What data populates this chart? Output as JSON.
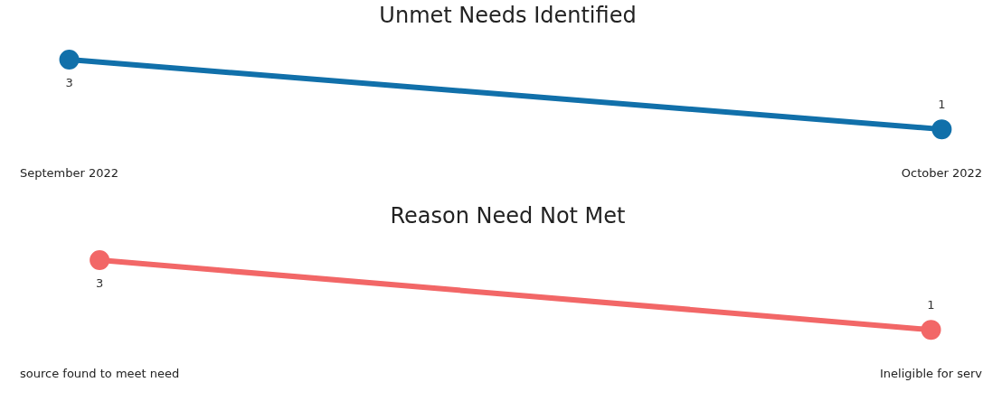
{
  "chart_data": [
    {
      "type": "line",
      "title": "Unmet Needs Identified",
      "categories": [
        "September 2022",
        "October 2022"
      ],
      "series": [
        {
          "color": "#1170aa",
          "values": [
            3,
            1
          ]
        }
      ],
      "data_labels": true,
      "marker": "circle",
      "grid": false,
      "legend": false,
      "tick_labels": "x"
    },
    {
      "type": "line",
      "title": "Reason Need Not Met",
      "categories": [
        "source found to meet need",
        "Ineligible for serv"
      ],
      "series": [
        {
          "color": "#f26767",
          "values": [
            3,
            1
          ]
        }
      ],
      "data_labels": true,
      "marker": "circle",
      "grid": false,
      "legend": false,
      "tick_labels": "x"
    }
  ]
}
